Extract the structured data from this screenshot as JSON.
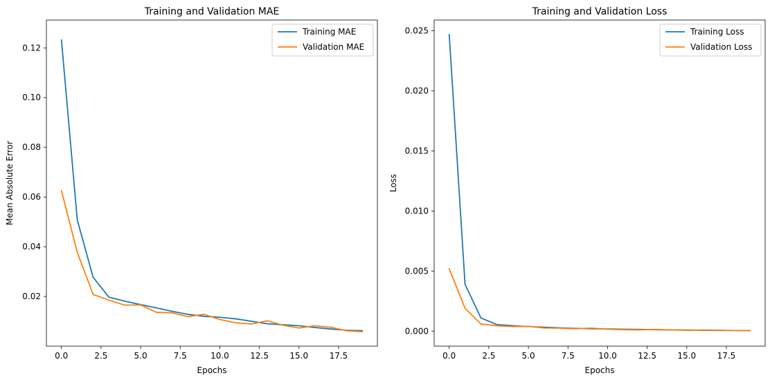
{
  "chart_data": [
    {
      "type": "line",
      "title": "Training and Validation MAE",
      "xlabel": "Epochs",
      "ylabel": "Mean Absolute Error",
      "xlim": [
        -0.95,
        19.95
      ],
      "ylim": [
        0.0,
        0.1312
      ],
      "xticks": [
        0.0,
        2.5,
        5.0,
        7.5,
        10.0,
        12.5,
        15.0,
        17.5
      ],
      "xtick_labels": [
        "0.0",
        "2.5",
        "5.0",
        "7.5",
        "10.0",
        "12.5",
        "15.0",
        "17.5"
      ],
      "yticks": [
        0.02,
        0.04,
        0.06,
        0.08,
        0.1,
        0.12
      ],
      "ytick_labels": [
        "0.02",
        "0.04",
        "0.06",
        "0.08",
        "0.10",
        "0.12"
      ],
      "grid": false,
      "legend_position": "top-right",
      "x": [
        0,
        1,
        2,
        3,
        4,
        5,
        6,
        7,
        8,
        9,
        10,
        11,
        12,
        13,
        14,
        15,
        16,
        17,
        18,
        19
      ],
      "series": [
        {
          "name": "Training MAE",
          "color": "#1f77b4",
          "values": [
            0.1232,
            0.0508,
            0.0277,
            0.0197,
            0.0181,
            0.0167,
            0.0154,
            0.014,
            0.0128,
            0.012,
            0.0116,
            0.011,
            0.01,
            0.009,
            0.0086,
            0.0082,
            0.0075,
            0.0069,
            0.0064,
            0.0062
          ]
        },
        {
          "name": "Validation MAE",
          "color": "#ff7f0e",
          "values": [
            0.0626,
            0.0377,
            0.0208,
            0.0185,
            0.0165,
            0.0166,
            0.0136,
            0.0134,
            0.0119,
            0.0128,
            0.0107,
            0.0094,
            0.0089,
            0.0102,
            0.0084,
            0.0073,
            0.0082,
            0.0076,
            0.0062,
            0.0058
          ]
        }
      ]
    },
    {
      "type": "line",
      "title": "Training and Validation Loss",
      "xlabel": "Epochs",
      "ylabel": "Loss",
      "xlim": [
        -0.95,
        19.95
      ],
      "ylim": [
        -0.00125,
        0.0259
      ],
      "xticks": [
        0.0,
        2.5,
        5.0,
        7.5,
        10.0,
        12.5,
        15.0,
        17.5
      ],
      "xtick_labels": [
        "0.0",
        "2.5",
        "5.0",
        "7.5",
        "10.0",
        "12.5",
        "15.0",
        "17.5"
      ],
      "yticks": [
        0.0,
        0.005,
        0.01,
        0.015,
        0.02,
        0.025
      ],
      "ytick_labels": [
        "0.000",
        "0.005",
        "0.010",
        "0.015",
        "0.020",
        "0.025"
      ],
      "grid": false,
      "legend_position": "top-right",
      "x": [
        0,
        1,
        2,
        3,
        4,
        5,
        6,
        7,
        8,
        9,
        10,
        11,
        12,
        13,
        14,
        15,
        16,
        17,
        18,
        19
      ],
      "series": [
        {
          "name": "Training Loss",
          "color": "#1f77b4",
          "values": [
            0.0247,
            0.0039,
            0.0011,
            0.00055,
            0.00045,
            0.00038,
            0.00032,
            0.00027,
            0.00023,
            0.0002,
            0.00018,
            0.00016,
            0.00014,
            0.00012,
            0.0001,
            9e-05,
            7e-05,
            6e-05,
            5e-05,
            4e-05
          ]
        },
        {
          "name": "Validation Loss",
          "color": "#ff7f0e",
          "values": [
            0.0052,
            0.0019,
            0.0006,
            0.00045,
            0.00038,
            0.0004,
            0.00026,
            0.00025,
            0.0002,
            0.00025,
            0.00016,
            0.00012,
            0.0001,
            0.00014,
            0.0001,
            7e-05,
            9e-05,
            8e-05,
            5e-05,
            4e-05
          ]
        }
      ]
    }
  ]
}
